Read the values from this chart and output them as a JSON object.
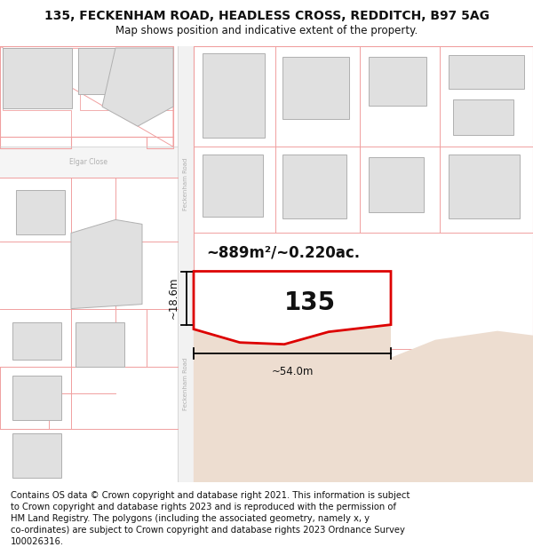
{
  "title": "135, FECKENHAM ROAD, HEADLESS CROSS, REDDITCH, B97 5AG",
  "subtitle": "Map shows position and indicative extent of the property.",
  "footer": "Contains OS data © Crown copyright and database right 2021. This information is subject\nto Crown copyright and database rights 2023 and is reproduced with the permission of\nHM Land Registry. The polygons (including the associated geometry, namely x, y\nco-ordinates) are subject to Crown copyright and database rights 2023 Ordnance Survey\n100026316.",
  "title_fontsize": 10,
  "subtitle_fontsize": 8.5,
  "footer_fontsize": 7.2,
  "map_bg": "#ffffff",
  "figure_bg": "#ffffff",
  "building_fill": "#e0e0e0",
  "building_outline": "#b0b0b0",
  "parcel_color": "#f0a0a0",
  "road_fill": "#f0f0f0",
  "road_label_color": "#b0b0b0",
  "plot_outline_color": "#dd0000",
  "land_fill": "#edddd0",
  "area_label": "~889m²/~0.220ac.",
  "house_number": "135",
  "dim_width": "~54.0m",
  "dim_height": "~18.6m",
  "area_label_fontsize": 12,
  "house_number_fontsize": 20,
  "dim_fontsize": 8.5,
  "elgar_label": "Elgar Close",
  "road_label": "Feckenham Road"
}
